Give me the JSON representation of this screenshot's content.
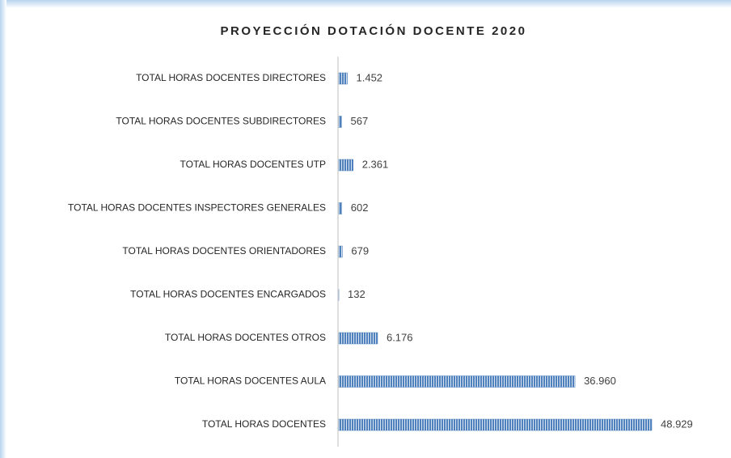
{
  "chart_data": {
    "type": "bar",
    "orientation": "horizontal",
    "title": "PROYECCIÓN DOTACIÓN DOCENTE 2020",
    "categories": [
      "TOTAL HORAS DOCENTES DIRECTORES",
      "TOTAL HORAS DOCENTES SUBDIRECTORES",
      "TOTAL HORAS DOCENTES UTP",
      "TOTAL HORAS DOCENTES INSPECTORES GENERALES",
      "TOTAL HORAS DOCENTES ORIENTADORES",
      "TOTAL HORAS DOCENTES ENCARGADOS",
      "TOTAL HORAS DOCENTES OTROS",
      "TOTAL HORAS DOCENTES AULA",
      "TOTAL HORAS DOCENTES"
    ],
    "values": [
      1452,
      567,
      2361,
      602,
      679,
      132,
      6176,
      36960,
      48929
    ],
    "value_labels": [
      "1.452",
      "567",
      "2.361",
      "602",
      "679",
      "132",
      "6.176",
      "36.960",
      "48.929"
    ],
    "color": "#4f81bd"
  }
}
